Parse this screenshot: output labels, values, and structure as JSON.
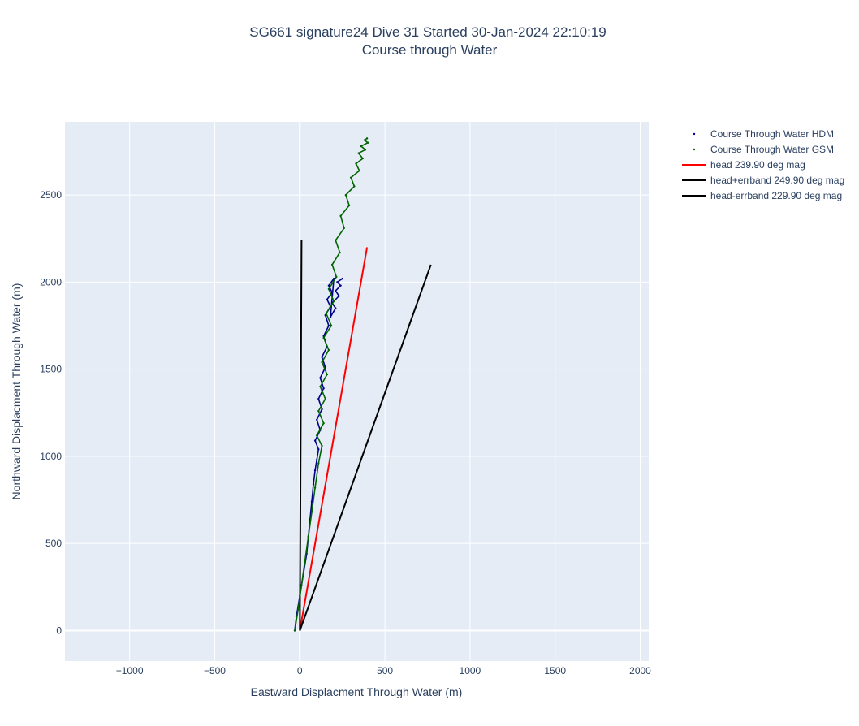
{
  "chart_data": {
    "type": "line",
    "title": "SG661 signature24 Dive 31 Started 30-Jan-2024 22:10:19",
    "subtitle": "Course through Water",
    "xlabel": "Eastward Displacment Through Water (m)",
    "ylabel": "Northward Displacment Through Water (m)",
    "xlim": [
      -1380,
      2050
    ],
    "ylim": [
      -175,
      2920
    ],
    "x_ticks": [
      -1000,
      -500,
      0,
      500,
      1000,
      1500,
      2000
    ],
    "x_tick_labels": [
      "−1000",
      "−500",
      "0",
      "500",
      "1000",
      "1500",
      "2000"
    ],
    "y_ticks": [
      0,
      500,
      1000,
      1500,
      2000,
      2500
    ],
    "y_tick_labels": [
      "0",
      "500",
      "1000",
      "1500",
      "2000",
      "2500"
    ],
    "grid": true,
    "legend_position": "top-right",
    "series": [
      {
        "name": "Course Through Water HDM",
        "kind": "markers",
        "color": "#00008b",
        "x": [
          -30,
          -20,
          0,
          20,
          40,
          50,
          60,
          70,
          80,
          90,
          100,
          110,
          90,
          120,
          100,
          130,
          110,
          140,
          120,
          150,
          130,
          160,
          140,
          170,
          150,
          180,
          160,
          190,
          170,
          200,
          180,
          210,
          190,
          230,
          210,
          240,
          220,
          250
        ],
        "y": [
          0,
          80,
          200,
          320,
          440,
          540,
          640,
          740,
          840,
          920,
          980,
          1040,
          1090,
          1150,
          1210,
          1270,
          1330,
          1390,
          1450,
          1510,
          1570,
          1630,
          1690,
          1750,
          1810,
          1860,
          1900,
          1940,
          1980,
          2020,
          1800,
          1850,
          1880,
          1920,
          1950,
          1980,
          2000,
          2020
        ]
      },
      {
        "name": "Course Through Water GSM",
        "kind": "markers",
        "color": "#006400",
        "x": [
          -30,
          -10,
          10,
          30,
          50,
          70,
          90,
          110,
          130,
          100,
          140,
          110,
          150,
          120,
          160,
          130,
          170,
          140,
          185,
          155,
          200,
          170,
          215,
          190,
          235,
          210,
          260,
          240,
          290,
          270,
          320,
          300,
          350,
          330,
          370,
          345,
          385,
          360,
          400,
          380,
          395
        ],
        "y": [
          0,
          120,
          260,
          400,
          540,
          680,
          820,
          960,
          1060,
          1120,
          1190,
          1260,
          1330,
          1400,
          1470,
          1540,
          1610,
          1680,
          1750,
          1820,
          1890,
          1960,
          2030,
          2100,
          2170,
          2240,
          2310,
          2380,
          2440,
          2500,
          2550,
          2600,
          2640,
          2680,
          2710,
          2740,
          2760,
          2780,
          2800,
          2815,
          2825
        ]
      },
      {
        "name": "head 239.90 deg mag",
        "kind": "line",
        "color": "#ff0000",
        "x": [
          0,
          395
        ],
        "y": [
          0,
          2200
        ]
      },
      {
        "name": "head+errband 249.90 deg mag",
        "kind": "line",
        "color": "#000000",
        "x": [
          0,
          770
        ],
        "y": [
          0,
          2100
        ]
      },
      {
        "name": "head-errband 229.90 deg mag",
        "kind": "line",
        "color": "#000000",
        "x": [
          0,
          10
        ],
        "y": [
          0,
          2240
        ]
      }
    ]
  }
}
